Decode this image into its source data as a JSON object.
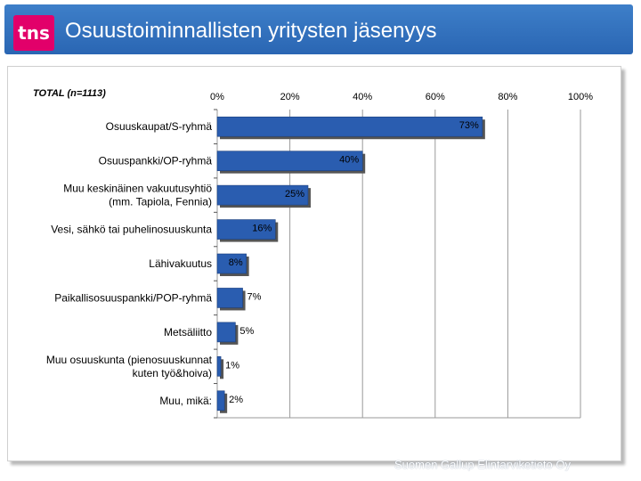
{
  "header": {
    "logo_text": "tns",
    "title": "Osuustoiminnallisten yritysten jäsenyys"
  },
  "footer": {
    "text": "Suomen Gallup Elintarviketieto Oy"
  },
  "colors": {
    "header": "#2f6fbd",
    "bar": "#2a5db0",
    "logo": "#e2006a"
  },
  "chart_data": {
    "type": "bar",
    "orientation": "horizontal",
    "title": "TOTAL (n=1113)",
    "xlim": [
      0,
      100
    ],
    "ticks": [
      0,
      20,
      40,
      60,
      80,
      100
    ],
    "tick_labels": [
      "0%",
      "20%",
      "40%",
      "60%",
      "80%",
      "100%"
    ],
    "grid": true,
    "categories": [
      [
        "Osuuskaupat/S-ryhmä"
      ],
      [
        "Osuuspankki/OP-ryhmä"
      ],
      [
        "Muu keskinäinen vakuutusyhtiö",
        "(mm. Tapiola, Fennia)"
      ],
      [
        "Vesi, sähkö tai puhelinosuuskunta"
      ],
      [
        "Lähivakuutus"
      ],
      [
        "Paikallisosuuspankki/POP-ryhmä"
      ],
      [
        "Metsäliitto"
      ],
      [
        "Muu osuuskunta (pienosuuskunnat",
        "kuten työ&hoiva)"
      ],
      [
        "Muu, mikä:"
      ]
    ],
    "values": [
      73,
      40,
      25,
      16,
      8,
      7,
      5,
      1,
      2
    ],
    "value_labels": [
      "73%",
      "40%",
      "25%",
      "16%",
      "8%",
      "7%",
      "5%",
      "1%",
      "2%"
    ]
  }
}
